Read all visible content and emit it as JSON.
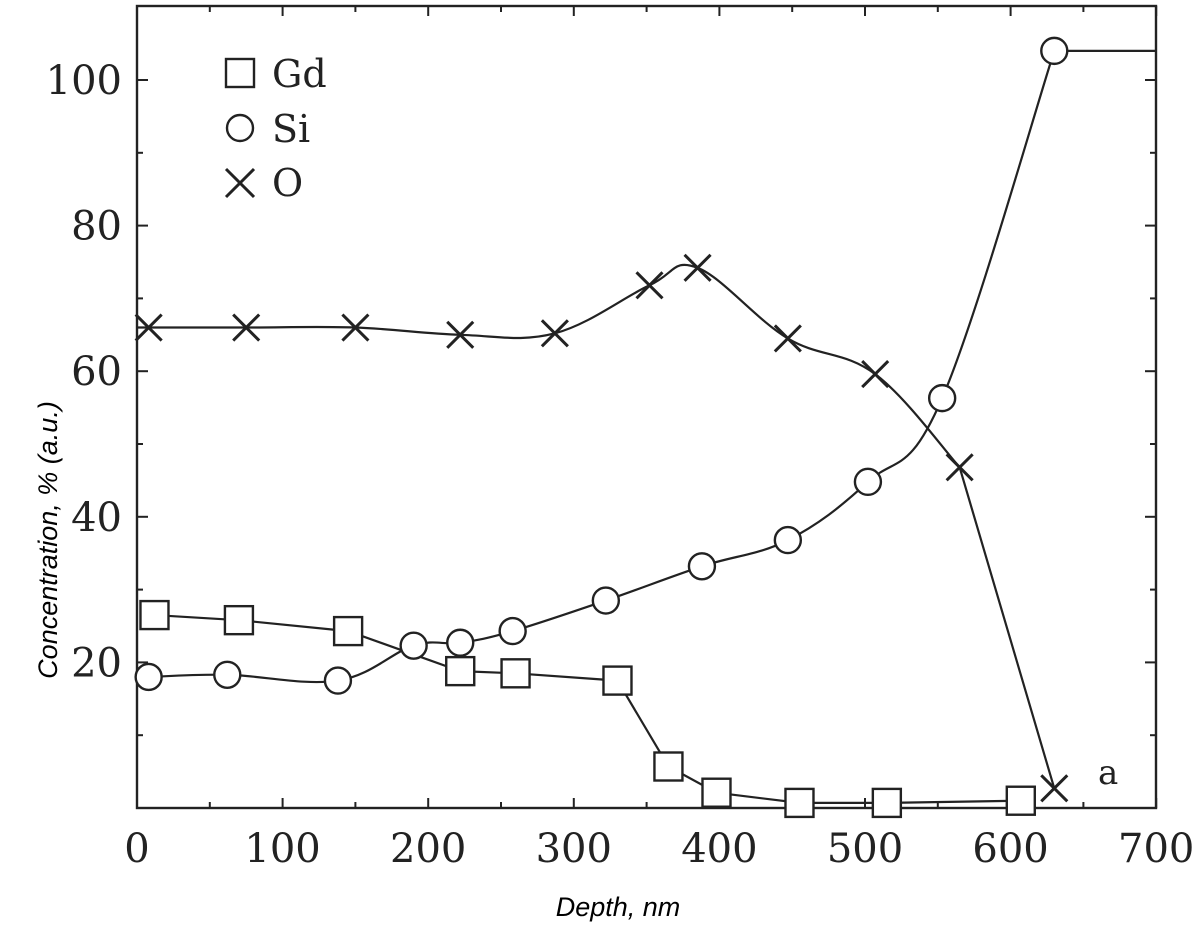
{
  "chart_data": {
    "type": "line",
    "xlabel": "Depth, nm",
    "ylabel": "Concentration, % (a.u.)",
    "xlim": [
      0,
      700
    ],
    "ylim": [
      0,
      110
    ],
    "x_ticks": [
      0,
      100,
      200,
      300,
      400,
      500,
      600,
      700
    ],
    "y_ticks": [
      20,
      40,
      60,
      80,
      100
    ],
    "grid": false,
    "legend_position": "top-left",
    "annotation": "a",
    "series": [
      {
        "name": "Gd",
        "marker": "square",
        "x": [
          12,
          70,
          145,
          222,
          260,
          330,
          365,
          398,
          455,
          515,
          607
        ],
        "y": [
          26.5,
          25.8,
          24.3,
          18.8,
          18.5,
          17.5,
          5.7,
          2.1,
          0.7,
          0.7,
          1.0
        ]
      },
      {
        "name": "Si",
        "marker": "circle",
        "x": [
          8,
          62,
          138,
          190,
          222,
          258,
          322,
          388,
          447,
          502,
          553,
          630
        ],
        "y": [
          18,
          18.3,
          17.5,
          22.3,
          22.7,
          24.3,
          28.5,
          33.2,
          36.8,
          44.8,
          56.3,
          104
        ]
      },
      {
        "name": "O",
        "marker": "cross",
        "x": [
          8,
          75,
          150,
          222,
          287,
          352,
          385,
          447,
          507,
          565,
          630
        ],
        "y": [
          66,
          66,
          66,
          65,
          65.2,
          71.8,
          74.2,
          64.5,
          59.6,
          46.8,
          2.7
        ]
      }
    ],
    "si_plateau": {
      "x": [
        630,
        700
      ],
      "y": [
        104,
        104
      ]
    }
  }
}
